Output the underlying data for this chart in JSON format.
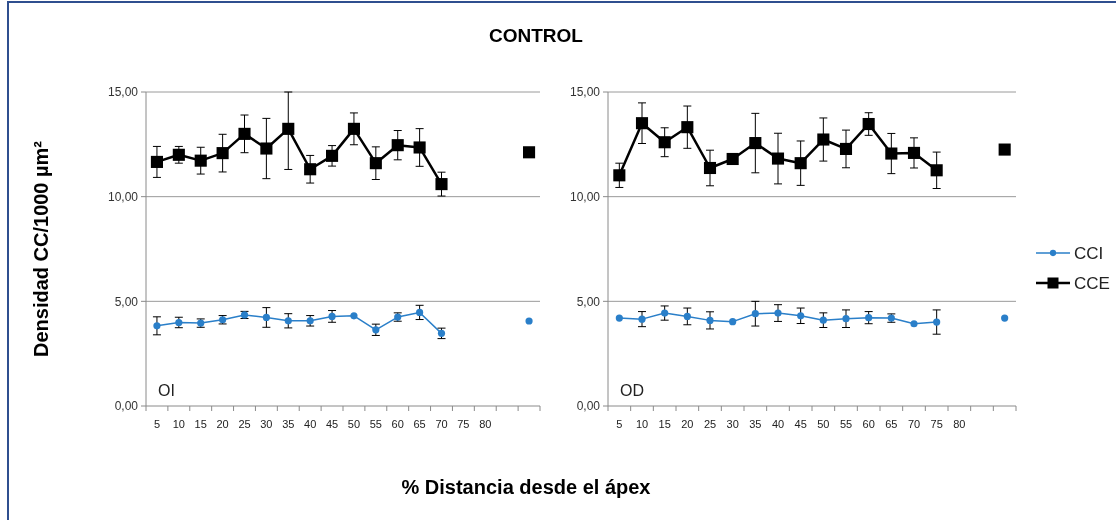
{
  "chart_data": [
    {
      "type": "line",
      "title": "CONTROL",
      "ylabel": "Densidad CC/1000 µm²",
      "xlabel": "% Distancia desde el ápex",
      "annotations": [
        "OI"
      ],
      "categories": [
        "5",
        "10",
        "15",
        "20",
        "25",
        "30",
        "35",
        "40",
        "45",
        "50",
        "55",
        "60",
        "65",
        "70",
        "75",
        "80",
        null,
        null
      ],
      "ylim": [
        0,
        15
      ],
      "yticks": [
        {
          "value": 0,
          "label": "0,00"
        },
        {
          "value": 5,
          "label": "5,00"
        },
        {
          "value": 10,
          "label": "10,00"
        },
        {
          "value": 15,
          "label": "15,00"
        }
      ],
      "grid": "y",
      "series": [
        {
          "color": "#2a7fc9",
          "marker": "circle",
          "values": [
            3.83,
            3.99,
            3.96,
            4.12,
            4.35,
            4.23,
            4.07,
            4.07,
            4.28,
            4.31,
            3.64,
            4.25,
            4.47,
            3.47,
            null,
            null,
            null,
            4.06
          ],
          "errors": [
            0.43,
            0.25,
            0.2,
            0.2,
            0.17,
            0.47,
            0.34,
            0.25,
            0.28,
            null,
            0.27,
            0.2,
            0.34,
            0.25,
            null,
            null,
            null,
            null
          ]
        },
        {
          "color": "#000000",
          "marker": "square",
          "values": [
            11.66,
            12.0,
            11.72,
            12.08,
            13.0,
            12.3,
            13.24,
            11.31,
            11.95,
            13.24,
            11.6,
            12.46,
            12.35,
            10.6,
            null,
            null,
            null,
            12.12
          ],
          "errors": [
            0.74,
            0.4,
            0.64,
            0.9,
            0.9,
            1.44,
            [
              11.3,
              15.0
            ],
            0.66,
            0.49,
            0.76,
            0.78,
            0.7,
            0.9,
            0.57,
            null,
            null,
            null,
            null
          ]
        }
      ]
    },
    {
      "type": "line",
      "annotations": [
        "OD"
      ],
      "legend": "right",
      "categories": [
        "5",
        "10",
        "15",
        "20",
        "25",
        "30",
        "35",
        "40",
        "45",
        "50",
        "55",
        "60",
        "65",
        "70",
        "75",
        "80",
        null,
        null
      ],
      "ylim": [
        0,
        15
      ],
      "yticks": [
        {
          "value": 0,
          "label": "0,00"
        },
        {
          "value": 5,
          "label": "5,00"
        },
        {
          "value": 10,
          "label": "10,00"
        },
        {
          "value": 15,
          "label": "15,00"
        }
      ],
      "grid": "y",
      "series": [
        {
          "name": "CCI",
          "color": "#2a7fc9",
          "marker": "circle",
          "values": [
            4.2,
            4.15,
            4.44,
            4.28,
            4.09,
            4.03,
            4.41,
            4.44,
            4.31,
            4.1,
            4.17,
            4.22,
            4.2,
            3.93,
            4.01,
            null,
            null,
            4.2
          ],
          "errors": [
            null,
            0.36,
            0.34,
            0.4,
            0.41,
            null,
            0.59,
            0.4,
            0.37,
            0.35,
            0.42,
            0.29,
            0.2,
            null,
            0.58,
            null,
            null,
            null
          ]
        },
        {
          "name": "CCE",
          "color": "#000000",
          "marker": "square",
          "values": [
            11.02,
            13.51,
            12.6,
            13.32,
            11.37,
            11.8,
            12.56,
            11.82,
            11.6,
            12.73,
            12.28,
            13.47,
            12.06,
            12.09,
            11.26,
            null,
            null,
            12.25
          ],
          "errors": [
            0.58,
            0.97,
            0.69,
            1.01,
            0.85,
            null,
            1.42,
            1.21,
            1.06,
            1.03,
            0.9,
            0.54,
            0.96,
            0.72,
            0.87,
            null,
            null,
            null
          ]
        }
      ]
    }
  ]
}
